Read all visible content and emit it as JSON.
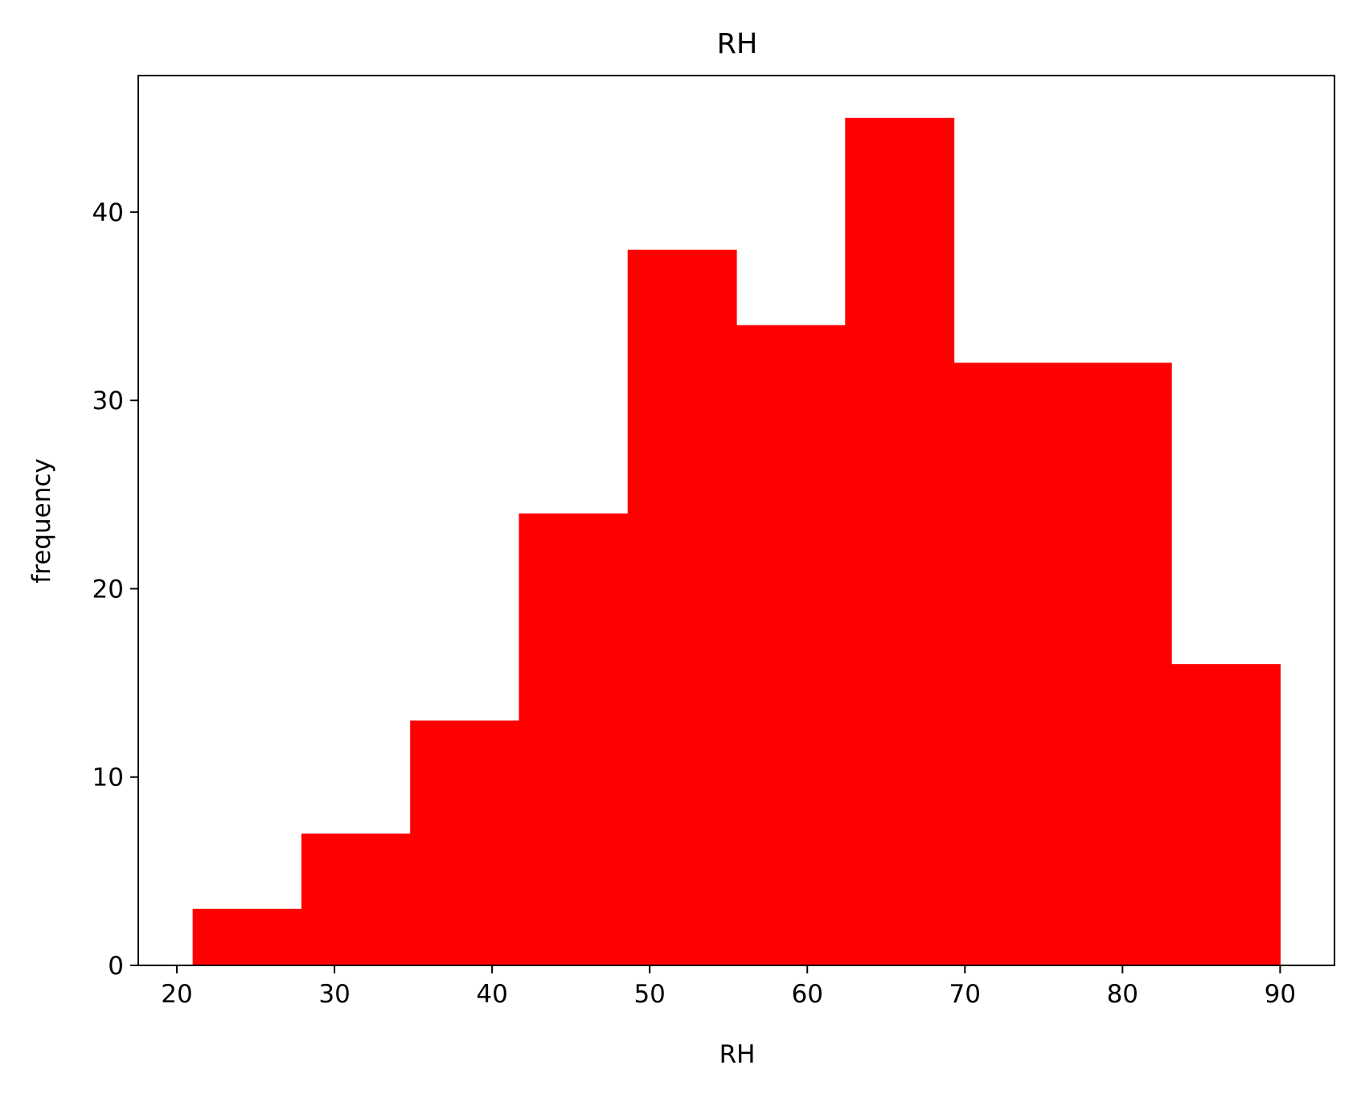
{
  "chart_data": {
    "type": "bar",
    "title": "RH",
    "xlabel": "RH",
    "ylabel": "frequency",
    "bin_edges": [
      21.0,
      27.9,
      34.8,
      41.7,
      48.6,
      55.5,
      62.4,
      69.3,
      76.2,
      83.1,
      90.0
    ],
    "values": [
      3,
      7,
      13,
      24,
      38,
      34,
      45,
      32,
      32,
      16
    ],
    "xlim": [
      17.55,
      93.45
    ],
    "ylim": [
      0,
      47.25
    ],
    "xticks": [
      20,
      30,
      40,
      50,
      60,
      70,
      80,
      90
    ],
    "yticks": [
      0,
      10,
      20,
      30,
      40
    ],
    "bar_color": "#ff0000",
    "grid": false,
    "legend": "none"
  }
}
